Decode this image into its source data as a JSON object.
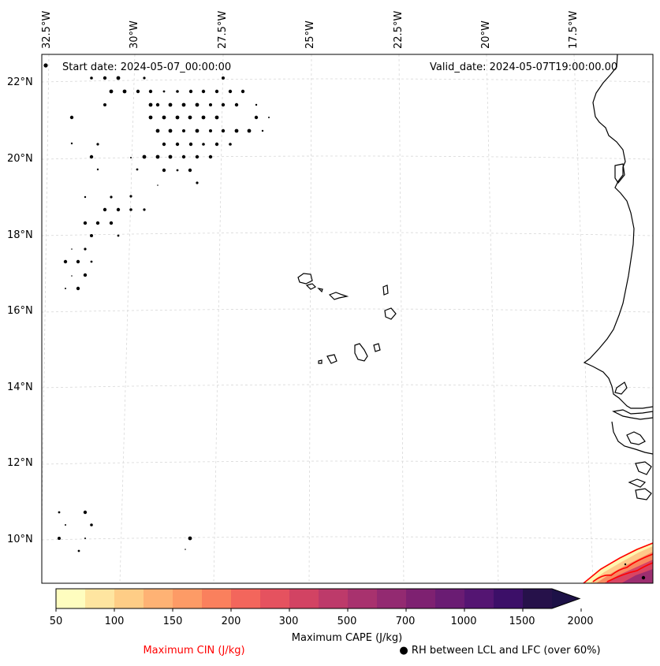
{
  "map": {
    "start_date": "Start date: 2024-05-07_00:00:00",
    "valid_date": "Valid_date: 2024-05-07T19:00:00.00",
    "lon_labels": [
      "32.5°W",
      "30°W",
      "27.5°W",
      "25°W",
      "22.5°W",
      "20°W",
      "17.5°W"
    ],
    "lat_labels": [
      "22°N",
      "20°N",
      "18°N",
      "16°N",
      "14°N",
      "12°N",
      "10°N"
    ],
    "extent": {
      "lon_min": -33.0,
      "lon_max": -16.0,
      "lat_min": 8.9,
      "lat_max": 22.6
    },
    "coastline_color": "#000000",
    "grid_color": "#cccccc"
  },
  "colorbar": {
    "title": "Maximum CAPE (J/kg)",
    "tick_labels": [
      "50",
      "100",
      "150",
      "200",
      "300",
      "500",
      "700",
      "1000",
      "1500",
      "2000"
    ],
    "colors": [
      "#fefdbf",
      "#fee5a0",
      "#fecd86",
      "#feb274",
      "#fd9b66",
      "#fa805d",
      "#f3665c",
      "#e5525f",
      "#d24363",
      "#bd3a6a",
      "#a8326e",
      "#932a71",
      "#7e2171",
      "#6a1c73",
      "#541572",
      "#3c0f68",
      "#26114a",
      "#1d1147"
    ]
  },
  "legend": {
    "cin_label": "Maximum CIN (J/kg)",
    "cin_color": "#ff0000",
    "rh_label": "RH between LCL and LFC (over 60%)",
    "rh_marker": "●"
  }
}
